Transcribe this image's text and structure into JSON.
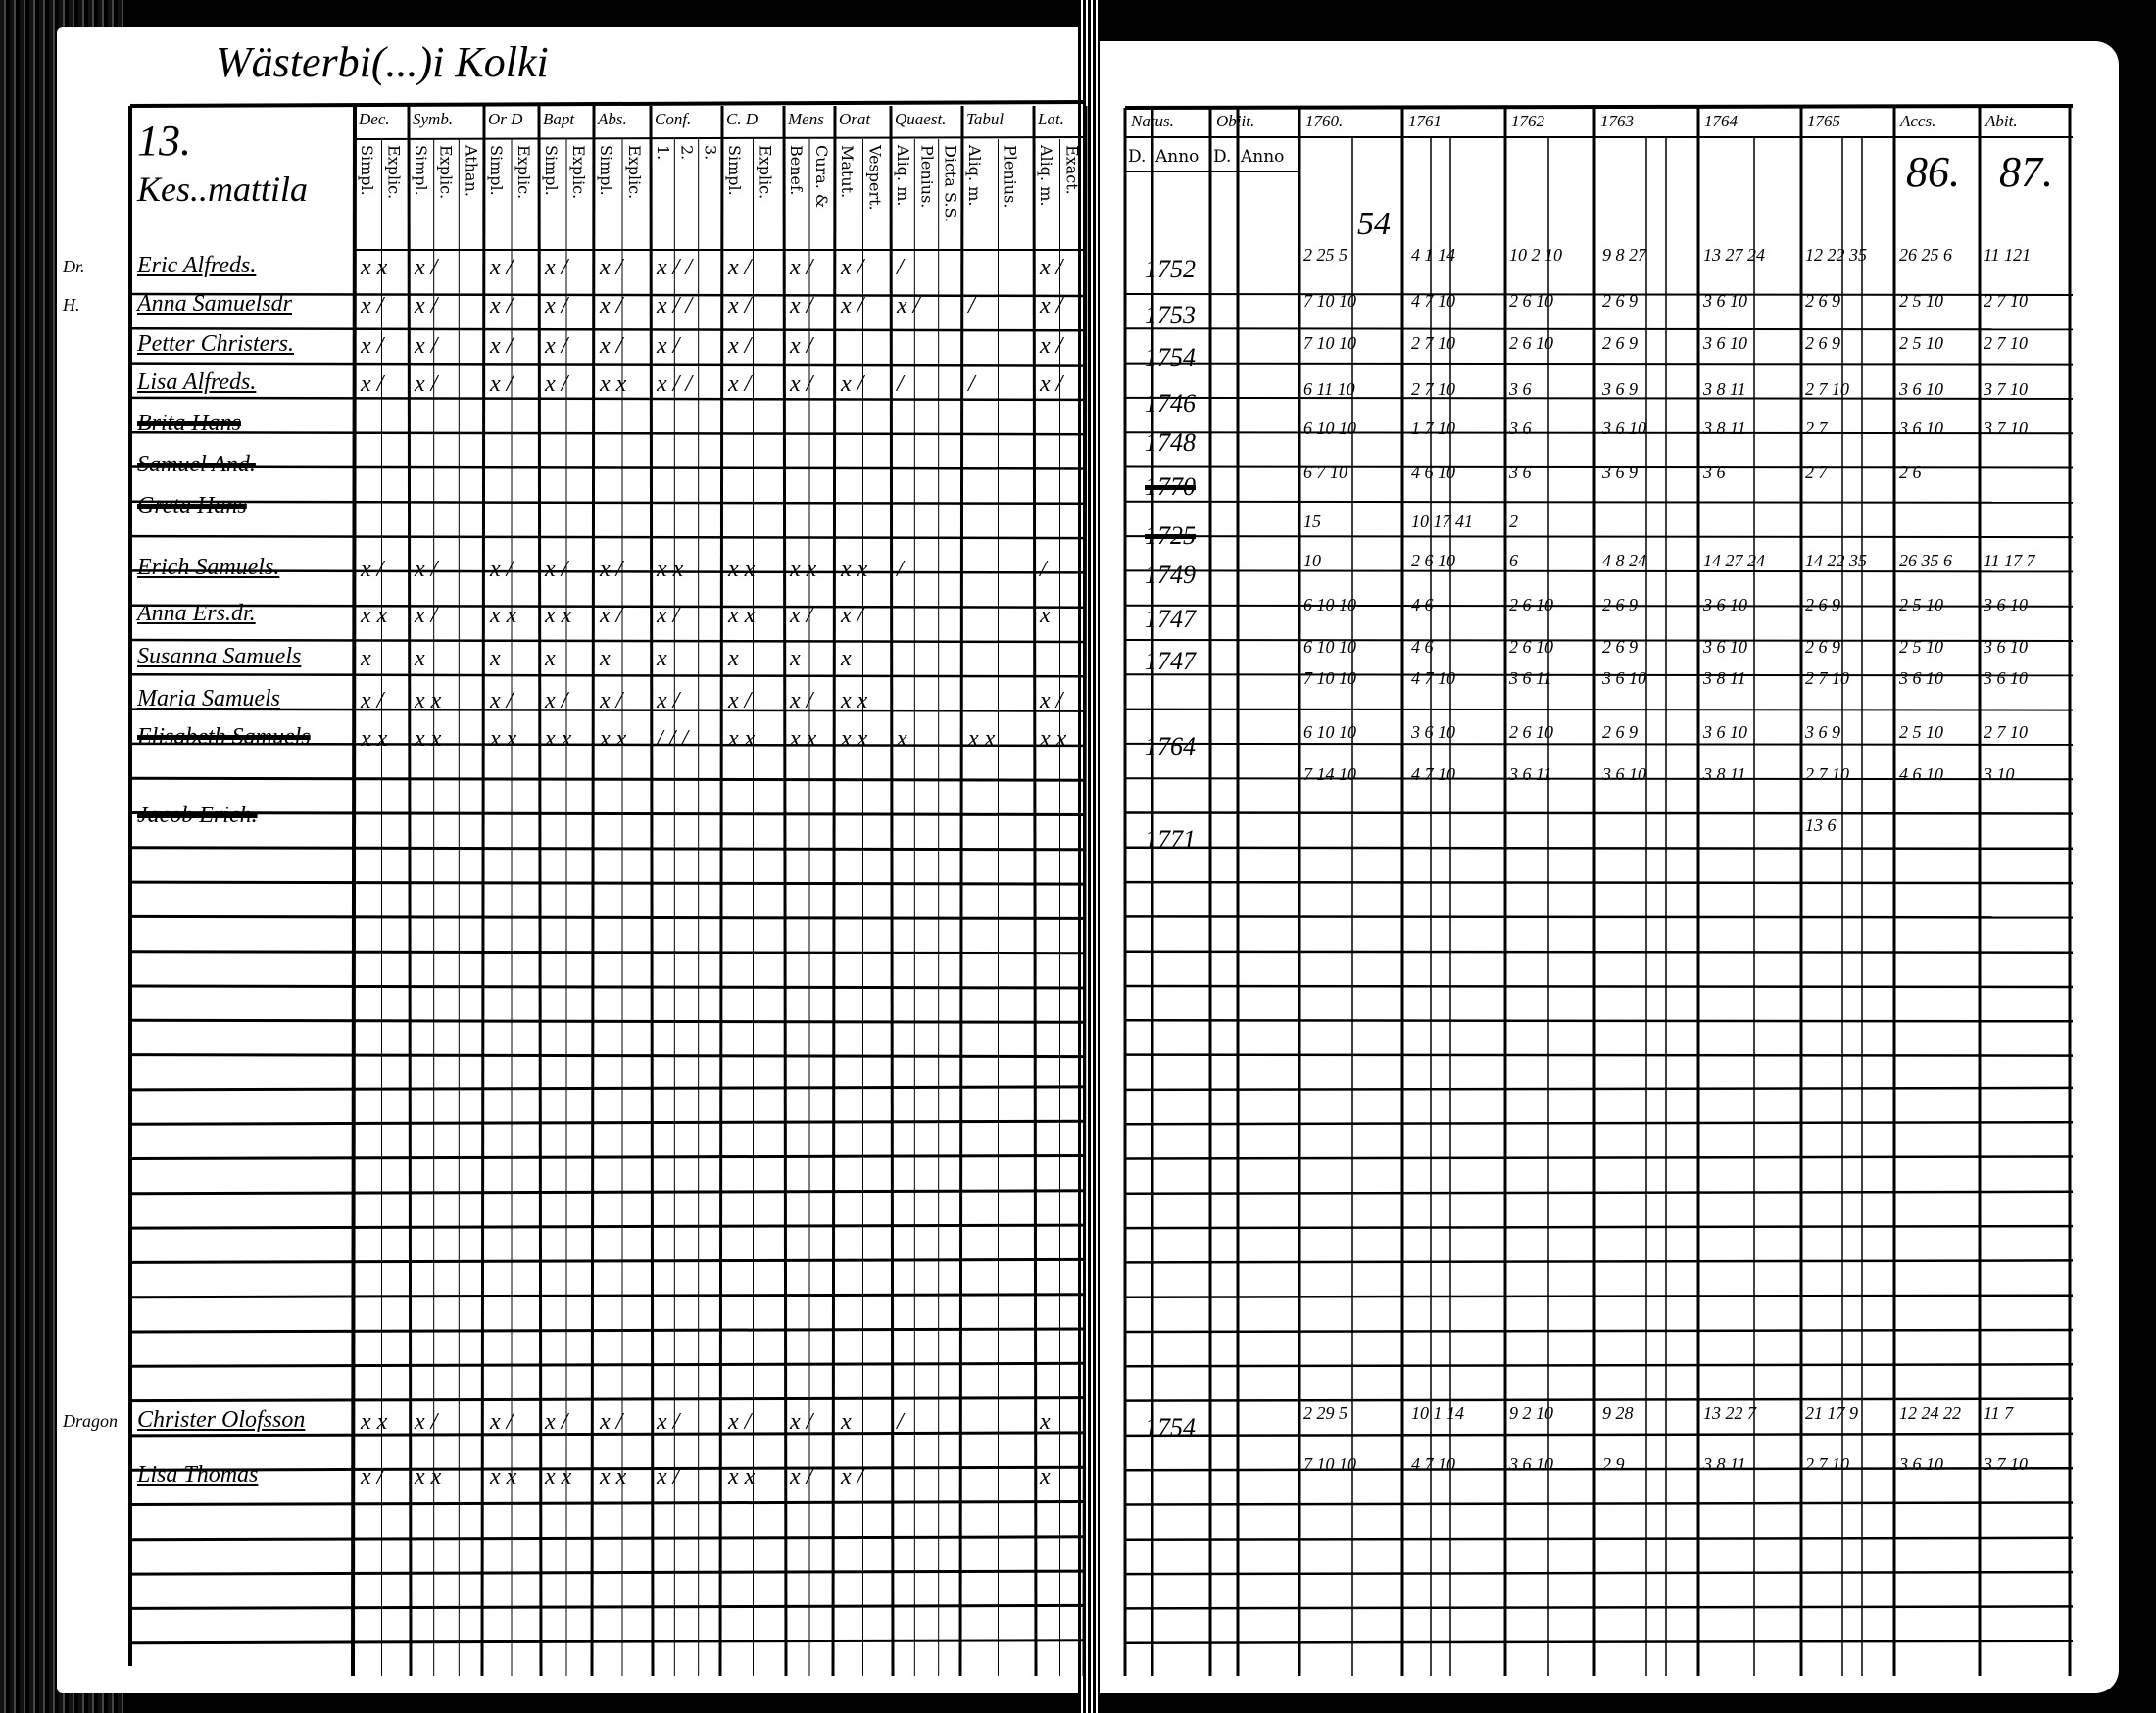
{
  "left": {
    "title": "Wästerbi(...)i Kolki",
    "page_number": "13.",
    "farm": "Kes..mattila",
    "columns": [
      {
        "label": "Dec.",
        "sub": [
          "Simpl.",
          "Explic."
        ]
      },
      {
        "label": "Symb.",
        "sub": [
          "Simpl.",
          "Explic.",
          "Athan."
        ]
      },
      {
        "label": "Or D",
        "sub": [
          "Simpl.",
          "Explic."
        ]
      },
      {
        "label": "Bapt",
        "sub": [
          "Simpl.",
          "Explic."
        ]
      },
      {
        "label": "Abs.",
        "sub": [
          "Simpl.",
          "Explic."
        ]
      },
      {
        "label": "Conf.",
        "sub": [
          "1.",
          "2.",
          "3."
        ]
      },
      {
        "label": "C. D",
        "sub": [
          "Simpl.",
          "Explic."
        ]
      },
      {
        "label": "Mens",
        "sub": [
          "Benef.",
          "Cura. &"
        ]
      },
      {
        "label": "Orat",
        "sub": [
          "Matut.",
          "Vespert."
        ]
      },
      {
        "label": "Quaest.",
        "sub": [
          "Aliq. m.",
          "Plenius.",
          "Dicta S.S."
        ]
      },
      {
        "label": "Tabul",
        "sub": [
          "Aliq. m.",
          "Plenius."
        ]
      },
      {
        "label": "Lat.",
        "sub": [
          "Aliq. m.",
          "Exact."
        ]
      }
    ],
    "rows": [
      {
        "side": "Dr.",
        "name": "Eric Alfreds.",
        "struck": false,
        "marks": [
          "x x",
          "x /",
          "x /",
          "x /",
          "x /",
          "x / /",
          "x /",
          "x /",
          "x /",
          "/",
          "",
          "x /"
        ]
      },
      {
        "side": "H.",
        "name": "Anna Samuelsdr",
        "struck": false,
        "marks": [
          "x /",
          "x /",
          "x /",
          "x /",
          "x /",
          "x / /",
          "x /",
          "x /",
          "x /",
          "x /",
          "/",
          "x /"
        ]
      },
      {
        "side": "",
        "name": "Petter Christers.",
        "struck": false,
        "marks": [
          "x /",
          "x /",
          "x /",
          "x /",
          "x /",
          "x /",
          "x /",
          "x /",
          "",
          "",
          "",
          "x /"
        ]
      },
      {
        "side": "",
        "name": "Lisa Alfreds.",
        "struck": false,
        "marks": [
          "x /",
          "x /",
          "x /",
          "x /",
          "x x",
          "x / /",
          "x /",
          "x /",
          "x /",
          "/",
          "/",
          "x /"
        ]
      },
      {
        "side": "",
        "name": "Brita Hans",
        "struck": true,
        "marks": []
      },
      {
        "side": "",
        "name": "Samuel And.",
        "struck": true,
        "marks": []
      },
      {
        "side": "",
        "name": "Greta Hans",
        "struck": true,
        "marks": []
      },
      {
        "side": "",
        "name": "Erich Samuels.",
        "struck": false,
        "marks": [
          "x /",
          "x /",
          "x /",
          "x /",
          "x /",
          "x x",
          "x x",
          "x x",
          "x x",
          "/",
          "",
          "/"
        ]
      },
      {
        "side": "",
        "name": "Anna Ers.dr.",
        "struck": false,
        "marks": [
          "x x",
          "x /",
          "x x",
          "x x",
          "x /",
          "x /",
          "x x",
          "x /",
          "x /",
          "",
          "",
          "x"
        ]
      },
      {
        "side": "",
        "name": "Susanna Samuels",
        "struck": false,
        "marks": [
          "x",
          "x",
          "x",
          "x",
          "x",
          "x",
          "x",
          "x",
          "x",
          "",
          "",
          ""
        ]
      },
      {
        "side": "",
        "name": "Maria Samuels",
        "struck": false,
        "marks": [
          "x /",
          "x x",
          "x /",
          "x /",
          "x /",
          "x /",
          "x /",
          "x /",
          "x x",
          "",
          "",
          "x /"
        ]
      },
      {
        "side": "",
        "name": "Elisabeth Samuels",
        "struck": true,
        "marks": [
          "x x",
          "x x",
          "x x",
          "x x",
          "x x",
          "/ / /",
          "x x",
          "x x",
          "x x",
          "x",
          "x x",
          "x x"
        ]
      },
      {
        "side": "",
        "name": "Jacob Erich.",
        "struck": true,
        "marks": []
      },
      {
        "side": "Dragon",
        "name": "Christer Olofsson",
        "struck": false,
        "marks": [
          "x x",
          "x /",
          "x /",
          "x /",
          "x /",
          "x /",
          "x /",
          "x /",
          "x",
          "/",
          "",
          "x"
        ]
      },
      {
        "side": "",
        "name": "Lisa Thomas",
        "struck": false,
        "marks": [
          "x /",
          "x x",
          "x x",
          "x x",
          "x x",
          "x /",
          "x x",
          "x /",
          "x /",
          "",
          "",
          "x"
        ]
      }
    ]
  },
  "right": {
    "columns": [
      {
        "label": "Natus.",
        "sub": [
          "D.",
          "Anno"
        ]
      },
      {
        "label": "Obiit.",
        "sub": [
          "D.",
          "Anno"
        ]
      },
      {
        "label": "1760.",
        "sub": []
      },
      {
        "label": "1761",
        "sub": []
      },
      {
        "label": "1762",
        "sub": []
      },
      {
        "label": "1763",
        "sub": []
      },
      {
        "label": "1764",
        "sub": []
      },
      {
        "label": "1765",
        "sub": []
      },
      {
        "label": "Accs.",
        "sub": []
      },
      {
        "label": "Abit.",
        "sub": []
      }
    ],
    "accs_number": "86.",
    "abit_number": "87.",
    "margin_note": "54",
    "rows": [
      {
        "year": "1752",
        "struck": false,
        "values": [
          "2 25 5",
          "4 1 14",
          "10 2 10",
          "9 8 27",
          "13 27 24",
          "12 22 35",
          "26 25 6",
          "11 121"
        ]
      },
      {
        "year": "1753",
        "struck": false,
        "values": [
          "7 10 10",
          "4 7 10",
          "2 6 10",
          "2 6 9",
          "3 6 10",
          "2 6 9",
          "2 5 10",
          "2 7 10"
        ]
      },
      {
        "year": "1754",
        "struck": false,
        "values": [
          "7 10 10",
          "2 7 10",
          "2 6 10",
          "2 6 9",
          "3 6 10",
          "2 6 9",
          "2 5 10",
          "2 7 10"
        ]
      },
      {
        "year": "1746",
        "struck": false,
        "values": [
          "6 11 10",
          "2 7 10",
          "3 6",
          "3 6 9",
          "3 8 11",
          "2 7 10",
          "3 6 10",
          "3 7 10"
        ]
      },
      {
        "year": "1748",
        "struck": false,
        "values": [
          "6 10 10",
          "1 7 10",
          "3 6",
          "3 6 10",
          "3 8 11",
          "2 7",
          "3 6 10",
          "3 7 10"
        ]
      },
      {
        "year": "1770",
        "struck": true,
        "values": [
          "6 7 10",
          "4 6 10",
          "3 6",
          "3 6 9",
          "3 6",
          "2 7",
          "2 6",
          ""
        ]
      },
      {
        "year": "1725",
        "struck": true,
        "values": [
          "15",
          "10 17 41",
          "2",
          "",
          "",
          "",
          "",
          ""
        ]
      },
      {
        "year": "1749",
        "struck": false,
        "values": [
          "10",
          "2 6 10",
          "6",
          "4 8 24",
          "14 27 24",
          "14 22 35",
          "26 35 6",
          "11 17 7"
        ]
      },
      {
        "year": "1747",
        "struck": false,
        "values": [
          "6 10 10",
          "4 6",
          "2 6 10",
          "2 6 9",
          "3 6 10",
          "2 6 9",
          "2 5 10",
          "3 6 10"
        ]
      },
      {
        "year": "1747",
        "struck": false,
        "values": [
          "6 10 10",
          "4 6",
          "2 6 10",
          "2 6 9",
          "3 6 10",
          "2 6 9",
          "2 5 10",
          "3 6 10"
        ]
      },
      {
        "year": "",
        "struck": false,
        "values": [
          "7 10 10",
          "4 7 10",
          "3 6 11",
          "3 6 10",
          "3 8 11",
          "2 7 10",
          "3 6 10",
          "3 6 10"
        ]
      },
      {
        "year": "1764",
        "struck": false,
        "values": [
          "6 10 10",
          "3 6 10",
          "2 6 10",
          "2 6 9",
          "3 6 10",
          "3 6 9",
          "2 5 10",
          "2 7 10"
        ]
      },
      {
        "year": "",
        "struck": false,
        "values": [
          "7 14 10",
          "4 7 10",
          "3 6 11",
          "3 6 10",
          "3 8 11",
          "2 7 10",
          "4 6 10",
          "3 10"
        ]
      },
      {
        "year": "1771",
        "struck": false,
        "values": [
          "",
          "",
          "",
          "",
          "",
          "13 6",
          "",
          ""
        ]
      },
      {
        "year": "1754",
        "struck": false,
        "values": [
          "2 29 5",
          "10 1 14",
          "9 2 10",
          "9 28",
          "13 22 7",
          "21 17 9",
          "12 24 22",
          "11 7"
        ]
      },
      {
        "year": "",
        "struck": false,
        "values": [
          "7 10 10",
          "4 7 10",
          "3 6 10",
          "2 9",
          "3 8 11",
          "2 7 10",
          "3 6 10",
          "3 7 10"
        ]
      }
    ]
  },
  "colors": {
    "background": "#000000",
    "paper": "#ffffff",
    "ink": "#000000"
  }
}
